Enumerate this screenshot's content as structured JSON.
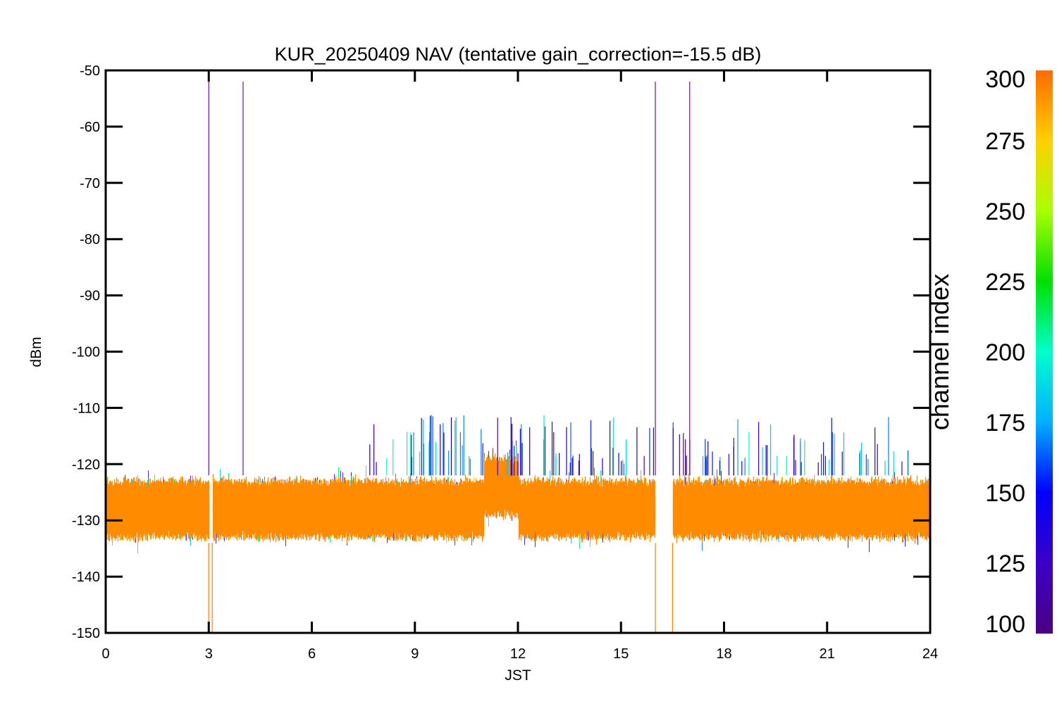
{
  "chart_data": {
    "type": "line",
    "title": "KUR_20250409 NAV (tentative gain_correction=-15.5 dB)",
    "xlabel": "JST",
    "ylabel": "dBm",
    "xlim": [
      0,
      24
    ],
    "ylim": [
      -150,
      -50
    ],
    "xticks": [
      0,
      3,
      6,
      9,
      12,
      15,
      18,
      21,
      24
    ],
    "yticks": [
      -50,
      -60,
      -70,
      -80,
      -90,
      -100,
      -110,
      -120,
      -130,
      -140,
      -150
    ],
    "grid": false,
    "colorbar": {
      "label": "channel index",
      "range": [
        100,
        300
      ],
      "ticks": [
        100,
        125,
        150,
        175,
        200,
        225,
        250,
        275,
        300
      ],
      "colormap": "rainbow"
    },
    "series_summary": {
      "description_free": true,
      "baseline_center_dbm": -128,
      "upper_envelope_dbm": -120,
      "lower_envelope_dbm": -136,
      "gaps_jst": [
        [
          3.0,
          3.1
        ],
        [
          16.0,
          16.5
        ]
      ],
      "elevated_segment_jst": [
        11.0,
        12.0
      ],
      "elevated_center_dbm": -124,
      "vertical_spikes_jst": [
        3.0,
        4.0,
        16.0,
        17.0
      ]
    },
    "colors": {
      "dominant": "#ff8c00",
      "high_channel": "#ff7f00",
      "mid_channel": "#00d084",
      "low_channel": "#2b2bff",
      "spike_line": "#6a0dad"
    }
  }
}
